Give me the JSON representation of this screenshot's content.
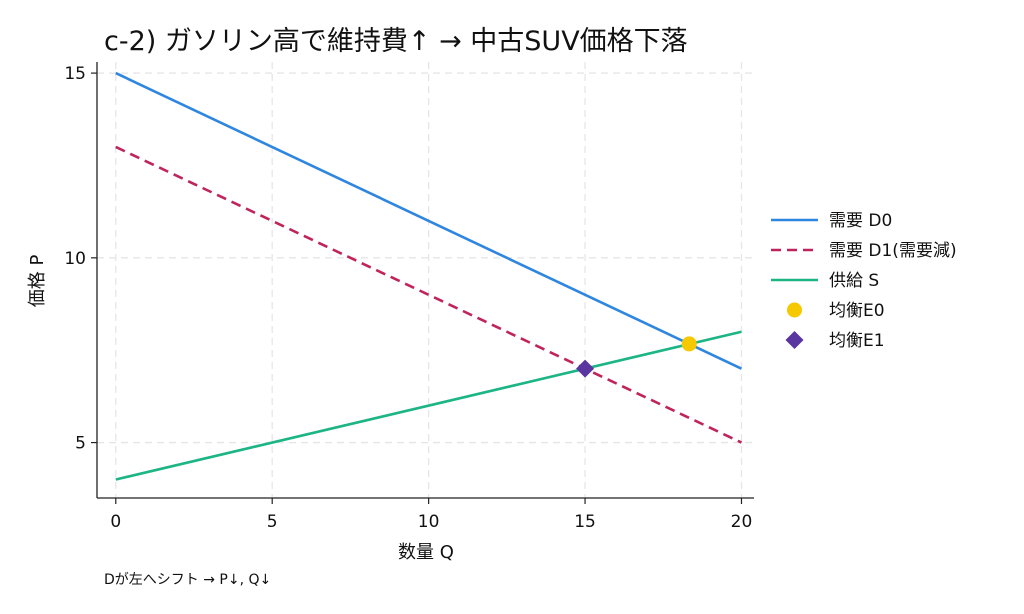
{
  "chart_data": {
    "type": "line",
    "title": "c-2) ガソリン高で維持費↑ → 中古SUV価格下落",
    "xlabel": "数量 Q",
    "ylabel": "価格 P",
    "xlim": [
      -0.6,
      20.4
    ],
    "ylim": [
      3.5,
      15.3
    ],
    "xticks": [
      0,
      5,
      10,
      15,
      20
    ],
    "yticks": [
      5,
      10,
      15
    ],
    "grid": true,
    "legend_position": "right",
    "series": [
      {
        "name": "需要 D0",
        "style": "solid",
        "color": "#2f86e0",
        "x": [
          0,
          20
        ],
        "y": [
          15,
          7
        ]
      },
      {
        "name": "需要 D1(需要減)",
        "style": "dashed",
        "color": "#c0245c",
        "x": [
          0,
          20
        ],
        "y": [
          13,
          5
        ]
      },
      {
        "name": "供給 S",
        "style": "solid",
        "color": "#1db585",
        "x": [
          0,
          20
        ],
        "y": [
          4,
          8
        ]
      }
    ],
    "points": [
      {
        "name": "均衡E0",
        "marker": "circle",
        "color": "#f5c800",
        "x": 18.33,
        "y": 7.67
      },
      {
        "name": "均衡E1",
        "marker": "diamond",
        "color": "#5a35a0",
        "x": 15,
        "y": 7
      }
    ],
    "annotation": "Dが左へシフト → P↓, Q↓"
  }
}
